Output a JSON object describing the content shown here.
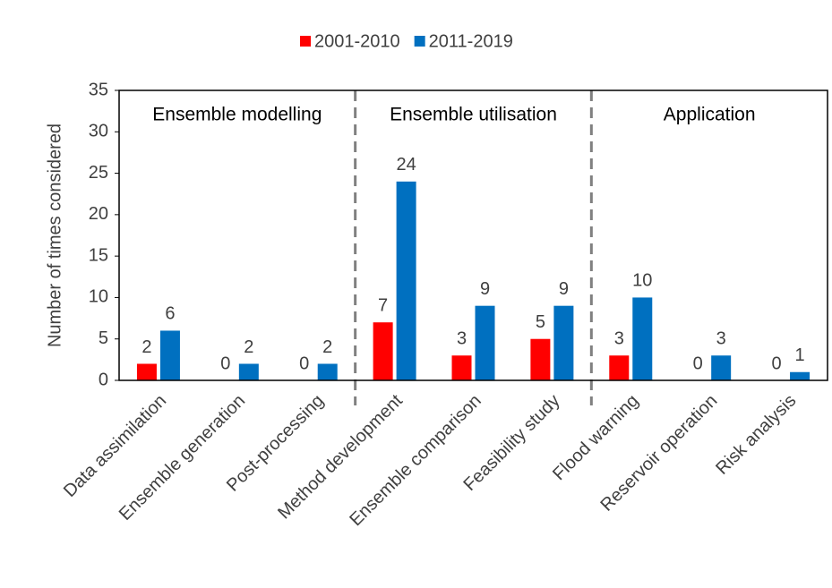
{
  "chart_data": {
    "type": "bar",
    "y_label": "Number  of times considered",
    "categories": [
      "Data assimilation",
      "Ensemble generation",
      "Post-processing",
      "Method development",
      "Ensemble comparison",
      "Feasibility study",
      "Flood warning",
      "Reservoir operation",
      "Risk analysis"
    ],
    "series": [
      {
        "name": "2001-2010",
        "color": "#ff0000",
        "values": [
          2,
          0,
          0,
          7,
          3,
          5,
          3,
          0,
          0
        ]
      },
      {
        "name": "2011-2019",
        "color": "#0070c0",
        "values": [
          6,
          2,
          2,
          24,
          9,
          9,
          10,
          3,
          1
        ]
      }
    ],
    "annotations": [
      "Ensemble modelling",
      "Ensemble utilisation",
      "Application"
    ],
    "ylim": [
      0,
      35
    ],
    "yticks": [
      0,
      5,
      10,
      15,
      20,
      25,
      30,
      35
    ],
    "grid": false,
    "legend": "top"
  }
}
